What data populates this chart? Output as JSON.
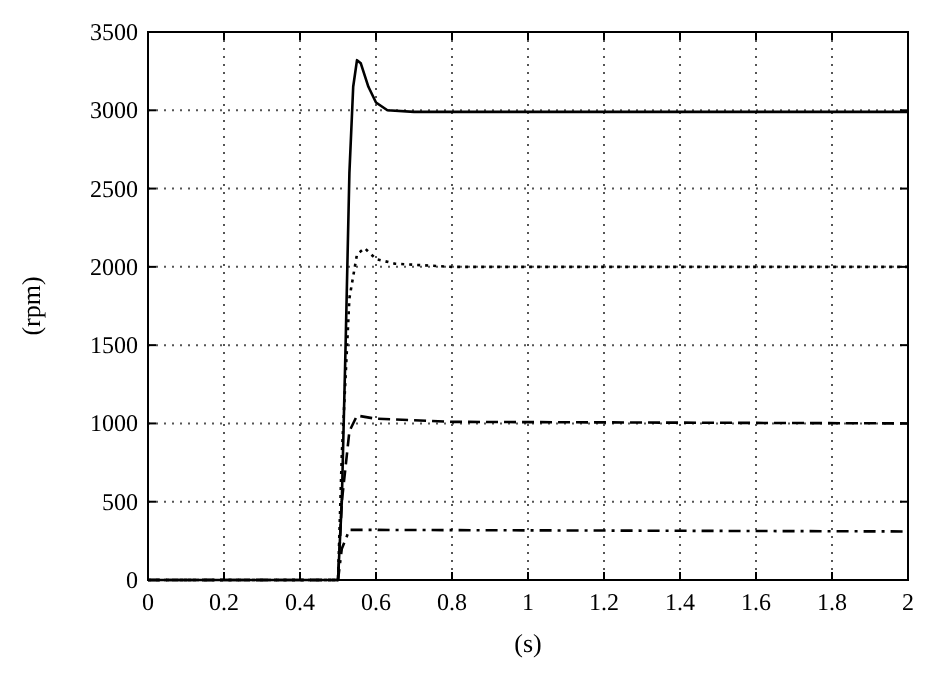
{
  "chart_data": {
    "type": "line",
    "xlabel": "(s)",
    "ylabel": "(rpm)",
    "xlim": [
      0,
      2
    ],
    "ylim": [
      0,
      3500
    ],
    "xticks": [
      0,
      0.2,
      0.4,
      0.6,
      0.8,
      1,
      1.2,
      1.4,
      1.6,
      1.8,
      2
    ],
    "yticks": [
      0,
      500,
      1000,
      1500,
      2000,
      2500,
      3000,
      3500
    ],
    "grid": true,
    "marker": "none",
    "series": [
      {
        "color": "#000000",
        "line_style": "solid",
        "x": [
          0,
          0.5,
          0.51,
          0.52,
          0.53,
          0.54,
          0.55,
          0.56,
          0.58,
          0.6,
          0.63,
          0.7,
          2
        ],
        "values": [
          0,
          0,
          500,
          1500,
          2600,
          3150,
          3320,
          3300,
          3150,
          3050,
          3000,
          2990,
          2990
        ]
      },
      {
        "color": "#000000",
        "line_style": "dotted",
        "x": [
          0,
          0.5,
          0.51,
          0.53,
          0.55,
          0.57,
          0.6,
          0.65,
          0.8,
          2
        ],
        "values": [
          0,
          0,
          800,
          1800,
          2080,
          2120,
          2050,
          2020,
          2000,
          2000
        ]
      },
      {
        "color": "#000000",
        "line_style": "dashed",
        "x": [
          0,
          0.5,
          0.51,
          0.53,
          0.55,
          0.6,
          0.8,
          2
        ],
        "values": [
          0,
          0,
          500,
          950,
          1050,
          1030,
          1010,
          1000
        ]
      },
      {
        "color": "#000000",
        "line_style": "dashdot",
        "x": [
          0,
          0.5,
          0.51,
          0.53,
          0.6,
          2
        ],
        "values": [
          0,
          0,
          200,
          320,
          320,
          310
        ]
      }
    ]
  }
}
